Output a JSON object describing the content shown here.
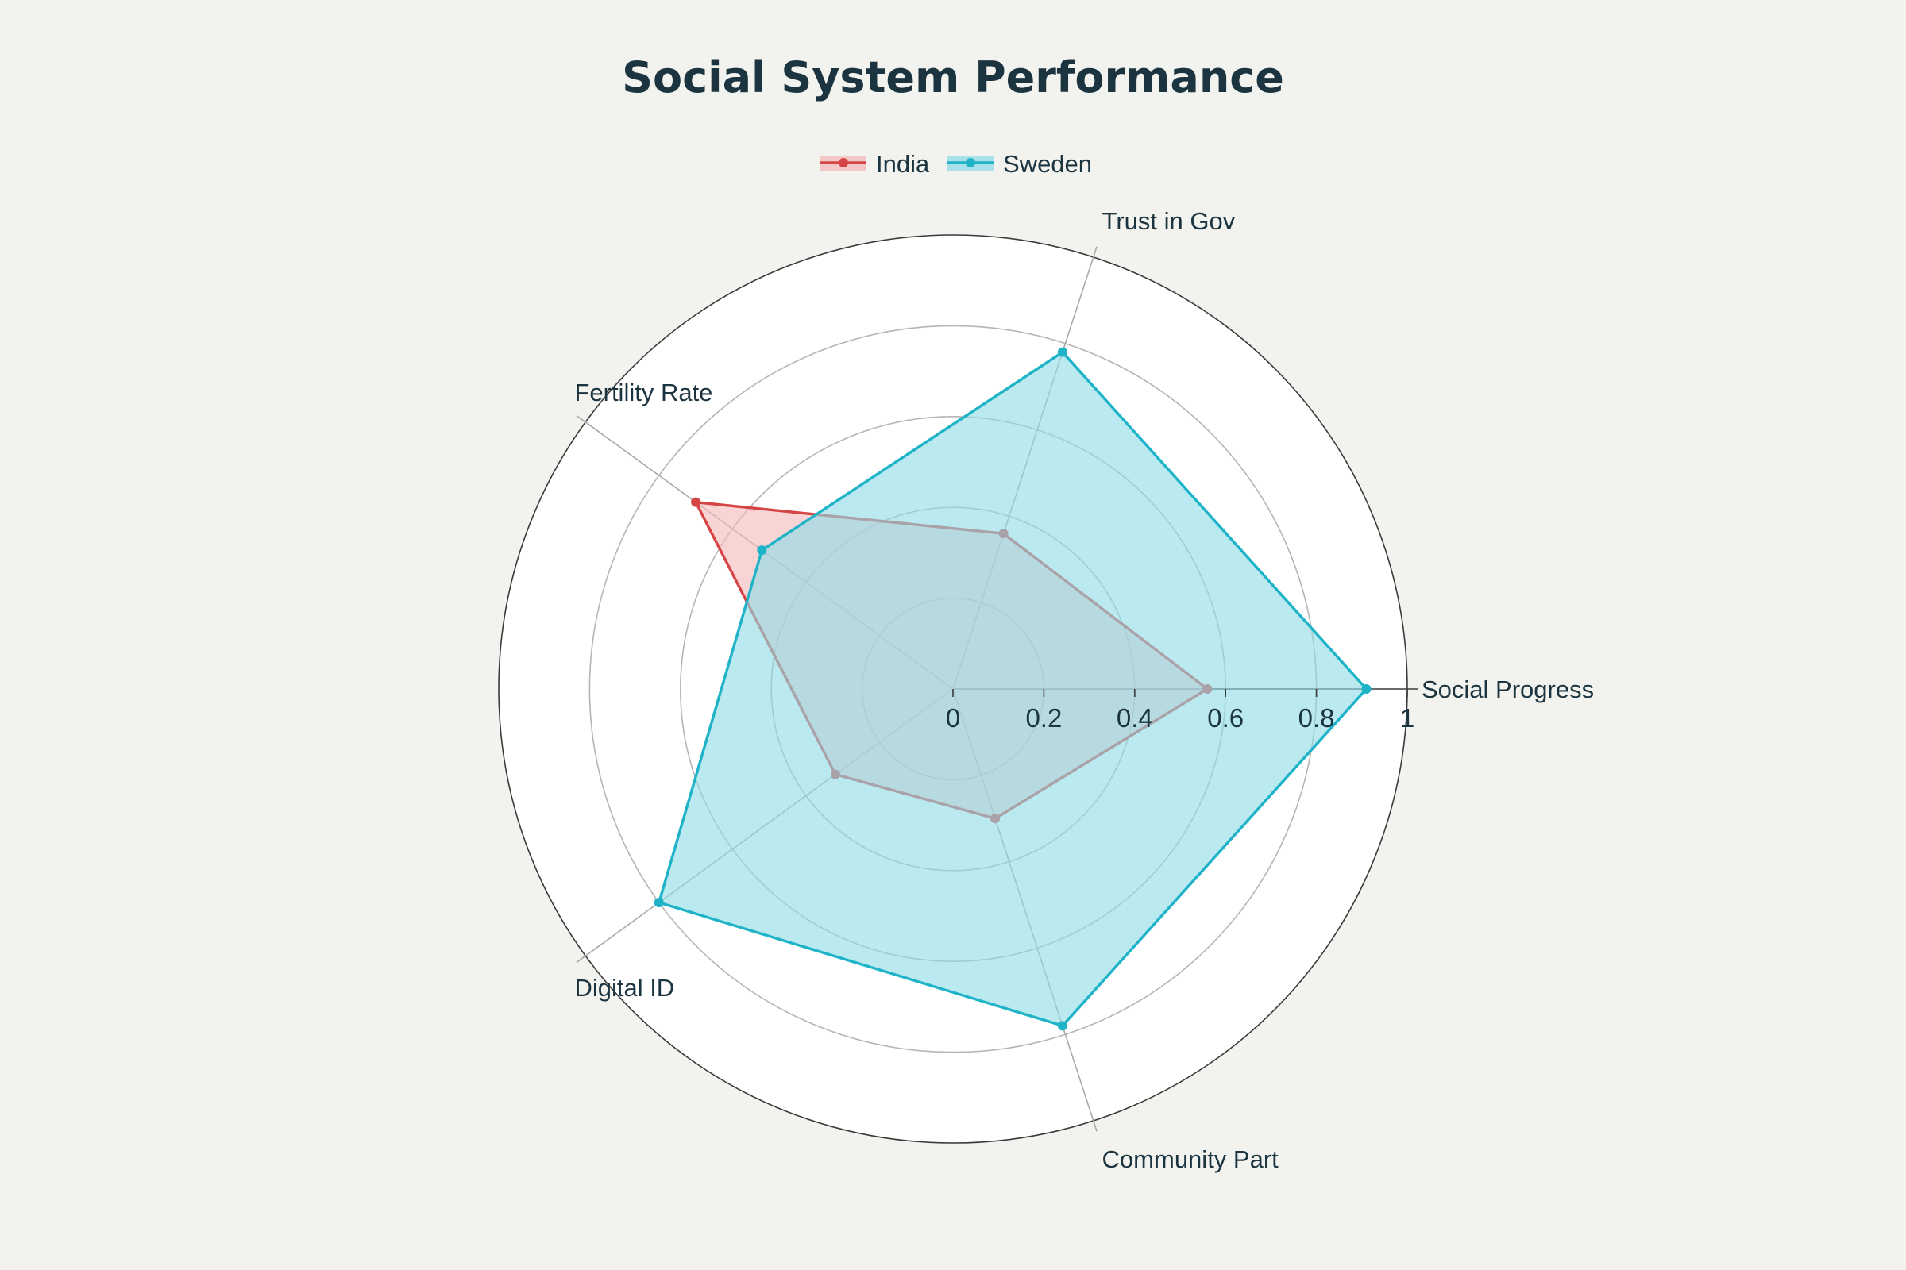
{
  "chart_data": {
    "type": "radar",
    "title": "Social System Performance",
    "axes": [
      "Social Progress",
      "Trust in Gov",
      "Fertility Rate",
      "Digital ID",
      "Community Part"
    ],
    "radial_range": [
      0,
      1
    ],
    "radial_ticks": [
      "0",
      "0.2",
      "0.4",
      "0.6",
      "0.8",
      "1"
    ],
    "legend_position": "top-center",
    "series": [
      {
        "name": "India",
        "values": [
          0.56,
          0.36,
          0.7,
          0.32,
          0.3
        ],
        "color": "#d64545",
        "fill": "#f4b9b9"
      },
      {
        "name": "Sweden",
        "values": [
          0.91,
          0.78,
          0.52,
          0.8,
          0.78
        ],
        "color": "#1fb3c8",
        "fill": "#8fdbe6"
      }
    ],
    "grid": true
  }
}
